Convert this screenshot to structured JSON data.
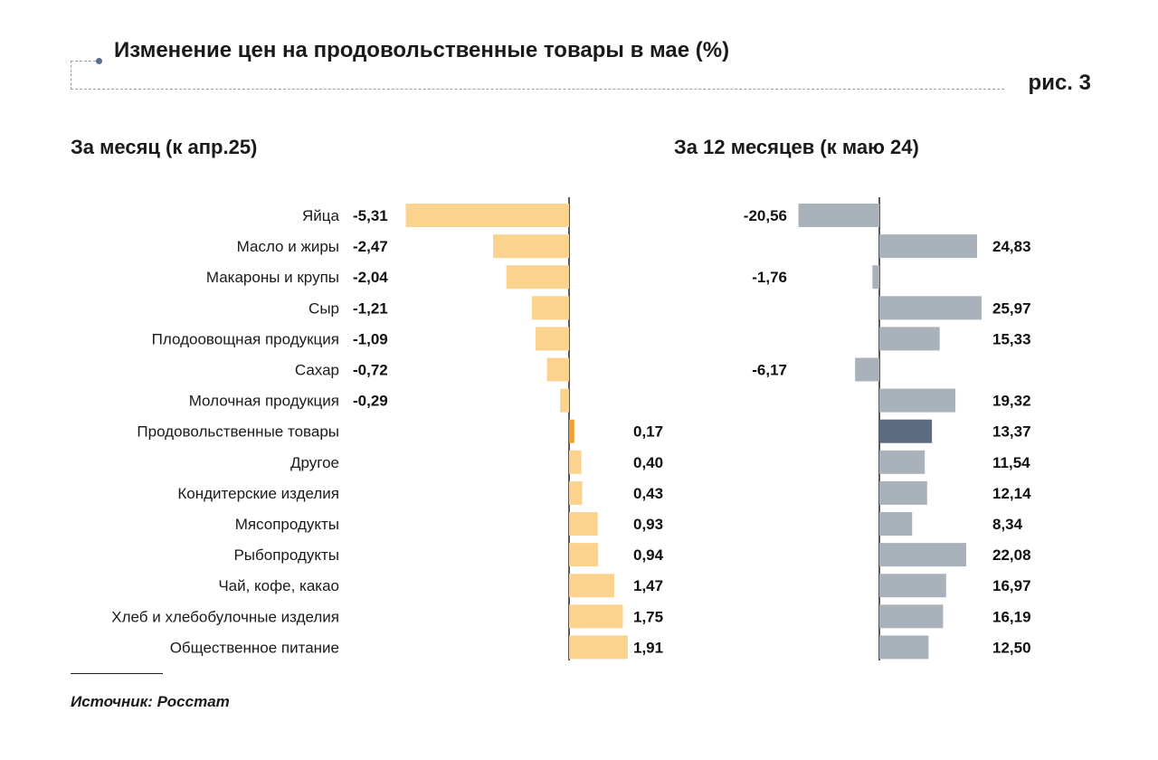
{
  "header": {
    "title": "Изменение цен на продовольственные товары в мае (%)",
    "figure_label": "рис. 3"
  },
  "footer": {
    "source": "Источник: Росстат"
  },
  "colors": {
    "month_bar": "#fbd38f",
    "month_highlight": "#f0a030",
    "year_bar": "#a9b2ba",
    "year_highlight": "#5a6b82",
    "axis": "#222222"
  },
  "chart_data": [
    {
      "type": "bar",
      "orientation": "horizontal",
      "title": "За месяц (к апр.25)",
      "categories": [
        "Яйца",
        "Масло и жиры",
        "Макароны и крупы",
        "Сыр",
        "Плодоовощная продукция",
        "Сахар",
        "Молочная продукция",
        "Продовольственные товары",
        "Другое",
        "Кондитерские изделия",
        "Мясопродукты",
        "Рыбопродукты",
        "Чай, кофе, какао",
        "Хлеб и хлебобулочные изделия",
        "Общественное питание"
      ],
      "values": [
        -5.31,
        -2.47,
        -2.04,
        -1.21,
        -1.09,
        -0.72,
        -0.29,
        0.17,
        0.4,
        0.43,
        0.93,
        0.94,
        1.47,
        1.75,
        1.91
      ],
      "value_labels": [
        "-5,31",
        "-2,47",
        "-2,04",
        "-1,21",
        "-1,09",
        "-0,72",
        "-0,29",
        "0,17",
        "0,40",
        "0,43",
        "0,93",
        "0,94",
        "1,47",
        "1,75",
        "1,91"
      ],
      "highlight": "Продовольственные товары"
    },
    {
      "type": "bar",
      "orientation": "horizontal",
      "title": "За 12 месяцев (к маю 24)",
      "categories": [
        "Яйца",
        "Масло и жиры",
        "Макароны и крупы",
        "Сыр",
        "Плодоовощная продукция",
        "Сахар",
        "Молочная продукция",
        "Продовольственные товары",
        "Другое",
        "Кондитерские изделия",
        "Мясопродукты",
        "Рыбопродукты",
        "Чай, кофе, какао",
        "Хлеб и хлебобулочные изделия",
        "Общественное питание"
      ],
      "values": [
        -20.56,
        24.83,
        -1.76,
        25.97,
        15.33,
        -6.17,
        19.32,
        13.37,
        11.54,
        12.14,
        8.34,
        22.08,
        16.97,
        16.19,
        12.5
      ],
      "value_labels": [
        "-20,56",
        "24,83",
        "-1,76",
        "25,97",
        "15,33",
        "-6,17",
        "19,32",
        "13,37",
        "11,54",
        "12,14",
        "8,34",
        "22,08",
        "16,97",
        "16,19",
        "12,50"
      ],
      "highlight": "Продовольственные товары"
    }
  ]
}
